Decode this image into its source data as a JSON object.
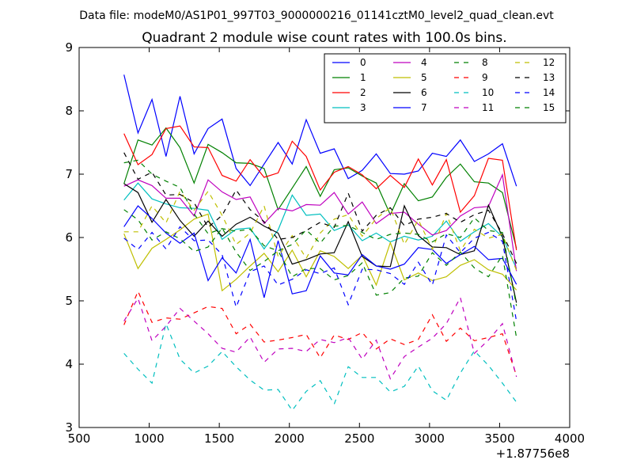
{
  "figure_header": "Data file: modeM0/AS1P01_997T03_9000000216_01141cztM0_level2_quad_clean.evt",
  "chart_data": {
    "type": "line",
    "title": "Quadrant 2 module wise count rates with 100.0s bins.",
    "xlabel": "",
    "ylabel": "",
    "x_offset_label": "+1.87756e8",
    "xlim": [
      500,
      4000
    ],
    "ylim": [
      3,
      9
    ],
    "x_ticks": [
      "500",
      "1000",
      "1500",
      "2000",
      "2500",
      "3000",
      "3500",
      "4000"
    ],
    "y_ticks": [
      "3",
      "4",
      "5",
      "6",
      "7",
      "8",
      "9"
    ],
    "grid": false,
    "legend_position": "top-right",
    "x": [
      820,
      920,
      1020,
      1120,
      1220,
      1320,
      1420,
      1520,
      1620,
      1720,
      1820,
      1920,
      2020,
      2120,
      2220,
      2320,
      2420,
      2520,
      2620,
      2720,
      2820,
      2920,
      3020,
      3120,
      3220,
      3320,
      3420,
      3520,
      3620
    ],
    "series": [
      {
        "name": "0",
        "color": "#0000ff",
        "dash": "solid",
        "values": [
          8.57,
          7.65,
          8.18,
          7.28,
          8.23,
          7.32,
          7.72,
          7.87,
          7.09,
          6.82,
          7.16,
          7.5,
          7.16,
          7.86,
          7.33,
          7.4,
          6.93,
          7.06,
          7.32,
          7.01,
          7.0,
          7.05,
          7.33,
          7.28,
          7.54,
          7.2,
          7.32,
          7.48,
          6.81
        ]
      },
      {
        "name": "1",
        "color": "#008000",
        "dash": "solid",
        "values": [
          6.85,
          7.54,
          7.46,
          7.73,
          7.42,
          6.86,
          7.47,
          7.34,
          7.18,
          7.17,
          7.09,
          6.44,
          6.78,
          7.12,
          6.65,
          7.07,
          7.1,
          6.97,
          6.86,
          6.36,
          6.85,
          6.58,
          6.64,
          6.95,
          7.16,
          6.88,
          6.86,
          6.71,
          5.83
        ]
      },
      {
        "name": "2",
        "color": "#ff0000",
        "dash": "solid",
        "values": [
          7.64,
          7.15,
          7.31,
          7.72,
          7.76,
          7.43,
          7.42,
          6.98,
          6.89,
          7.23,
          6.95,
          7.02,
          7.52,
          7.28,
          6.75,
          7.03,
          7.12,
          6.99,
          6.77,
          6.98,
          6.79,
          7.24,
          6.83,
          7.23,
          6.4,
          6.66,
          7.25,
          7.22,
          5.8
        ]
      },
      {
        "name": "3",
        "color": "#00bfbf",
        "dash": "solid",
        "values": [
          6.59,
          6.86,
          6.61,
          6.53,
          6.47,
          6.46,
          6.43,
          5.97,
          6.13,
          6.15,
          5.82,
          6.12,
          6.67,
          6.35,
          6.37,
          6.11,
          6.2,
          5.95,
          6.07,
          5.93,
          6.02,
          5.96,
          6.02,
          6.26,
          5.94,
          6.09,
          6.22,
          6.01,
          5.51
        ]
      },
      {
        "name": "4",
        "color": "#bf00bf",
        "dash": "solid",
        "values": [
          6.81,
          6.91,
          6.82,
          6.62,
          6.62,
          6.34,
          6.91,
          6.72,
          6.6,
          6.64,
          6.22,
          6.46,
          6.42,
          6.52,
          6.51,
          6.71,
          6.37,
          6.56,
          6.22,
          6.38,
          6.4,
          6.21,
          6.04,
          6.11,
          6.34,
          6.47,
          6.49,
          6.99,
          5.47
        ]
      },
      {
        "name": "5",
        "color": "#bfbf00",
        "dash": "solid",
        "values": [
          6.06,
          5.51,
          5.83,
          5.97,
          6.12,
          6.29,
          6.37,
          5.16,
          5.34,
          5.55,
          5.75,
          5.46,
          5.8,
          5.38,
          5.79,
          5.7,
          5.51,
          5.72,
          5.25,
          5.92,
          5.33,
          5.44,
          5.32,
          5.38,
          5.56,
          5.65,
          5.49,
          5.42,
          5.17
        ]
      },
      {
        "name": "6",
        "color": "#000000",
        "dash": "solid",
        "values": [
          6.85,
          6.71,
          6.24,
          6.6,
          6.27,
          6.02,
          6.26,
          6.02,
          6.21,
          6.32,
          6.18,
          6.07,
          5.58,
          5.65,
          5.74,
          5.76,
          6.25,
          5.7,
          5.55,
          5.54,
          6.5,
          6.03,
          5.85,
          5.84,
          5.73,
          5.79,
          6.51,
          6.01,
          4.97
        ]
      },
      {
        "name": "7",
        "color": "#0000ff",
        "dash": "solid",
        "values": [
          6.17,
          6.5,
          6.3,
          6.07,
          5.91,
          6.07,
          5.32,
          5.68,
          5.44,
          5.97,
          5.05,
          5.95,
          5.11,
          5.16,
          5.71,
          5.44,
          5.41,
          5.73,
          5.55,
          5.5,
          5.58,
          5.84,
          5.81,
          5.59,
          5.73,
          5.86,
          5.65,
          5.67,
          5.26
        ]
      },
      {
        "name": "8",
        "color": "#008000",
        "dash": "dashed",
        "values": [
          6.44,
          6.28,
          5.96,
          6.09,
          5.98,
          5.78,
          5.85,
          6.15,
          5.77,
          5.48,
          5.62,
          5.79,
          5.38,
          5.51,
          5.51,
          5.33,
          5.4,
          5.6,
          5.09,
          5.13,
          5.36,
          5.39,
          5.76,
          5.56,
          5.77,
          5.52,
          5.38,
          5.72,
          4.42
        ]
      },
      {
        "name": "9",
        "color": "#ff0000",
        "dash": "dashed",
        "values": [
          4.62,
          5.15,
          4.66,
          4.73,
          4.71,
          4.81,
          4.91,
          4.88,
          4.48,
          4.63,
          4.35,
          4.38,
          4.42,
          4.47,
          4.1,
          4.46,
          4.39,
          4.5,
          4.24,
          4.4,
          4.31,
          4.39,
          4.78,
          4.36,
          4.57,
          4.37,
          4.42,
          4.48,
          3.82
        ]
      },
      {
        "name": "10",
        "color": "#00bfbf",
        "dash": "dashed",
        "values": [
          4.17,
          3.92,
          3.7,
          4.64,
          4.08,
          3.86,
          3.97,
          4.2,
          3.96,
          3.75,
          3.59,
          3.6,
          3.27,
          3.57,
          3.74,
          3.37,
          3.96,
          3.79,
          3.79,
          3.56,
          3.65,
          3.97,
          3.58,
          3.43,
          3.86,
          4.21,
          3.98,
          3.7,
          3.4
        ]
      },
      {
        "name": "11",
        "color": "#bf00bf",
        "dash": "dashed",
        "values": [
          4.68,
          5.04,
          4.37,
          4.6,
          4.88,
          4.68,
          4.48,
          4.25,
          4.19,
          4.43,
          4.03,
          4.24,
          4.25,
          4.2,
          4.39,
          4.34,
          4.42,
          4.08,
          4.38,
          3.77,
          4.12,
          4.27,
          4.41,
          4.64,
          5.05,
          4.17,
          4.38,
          4.64,
          3.8
        ]
      },
      {
        "name": "12",
        "color": "#bfbf00",
        "dash": "dashed",
        "values": [
          6.09,
          6.09,
          6.5,
          6.23,
          6.73,
          6.43,
          6.73,
          6.35,
          5.89,
          6.07,
          6.5,
          5.7,
          6.03,
          5.67,
          6.07,
          6.29,
          6.36,
          6.02,
          6.3,
          6.47,
          5.89,
          6.28,
          5.81,
          6.38,
          5.79,
          6.13,
          5.99,
          6.05,
          5.48
        ]
      },
      {
        "name": "13",
        "color": "#000000",
        "dash": "dashed",
        "values": [
          7.34,
          6.92,
          7.03,
          6.67,
          6.68,
          6.55,
          6.16,
          6.35,
          6.75,
          6.44,
          6.25,
          5.97,
          6.0,
          6.11,
          6.24,
          6.16,
          6.7,
          6.1,
          6.35,
          6.47,
          6.19,
          6.29,
          6.32,
          6.38,
          6.24,
          6.36,
          6.43,
          6.06,
          5.59
        ]
      },
      {
        "name": "14",
        "color": "#0000ff",
        "dash": "dashed",
        "values": [
          5.99,
          5.81,
          6.08,
          5.82,
          6.17,
          5.95,
          5.96,
          5.73,
          4.9,
          5.46,
          5.55,
          5.25,
          5.34,
          5.49,
          5.43,
          5.52,
          4.94,
          5.5,
          5.49,
          5.43,
          5.26,
          5.61,
          5.25,
          6.04,
          5.76,
          5.99,
          6.08,
          5.94,
          4.68
        ]
      },
      {
        "name": "15",
        "color": "#008000",
        "dash": "dashed",
        "values": [
          7.18,
          7.22,
          7.0,
          6.89,
          6.79,
          6.37,
          6.06,
          6.14,
          6.1,
          6.13,
          5.87,
          5.79,
          5.89,
          6.12,
          5.91,
          6.18,
          6.19,
          6.08,
          5.97,
          6.05,
          6.07,
          6.05,
          5.93,
          6.06,
          6.0,
          6.31,
          6.11,
          6.08,
          4.92
        ]
      }
    ]
  }
}
